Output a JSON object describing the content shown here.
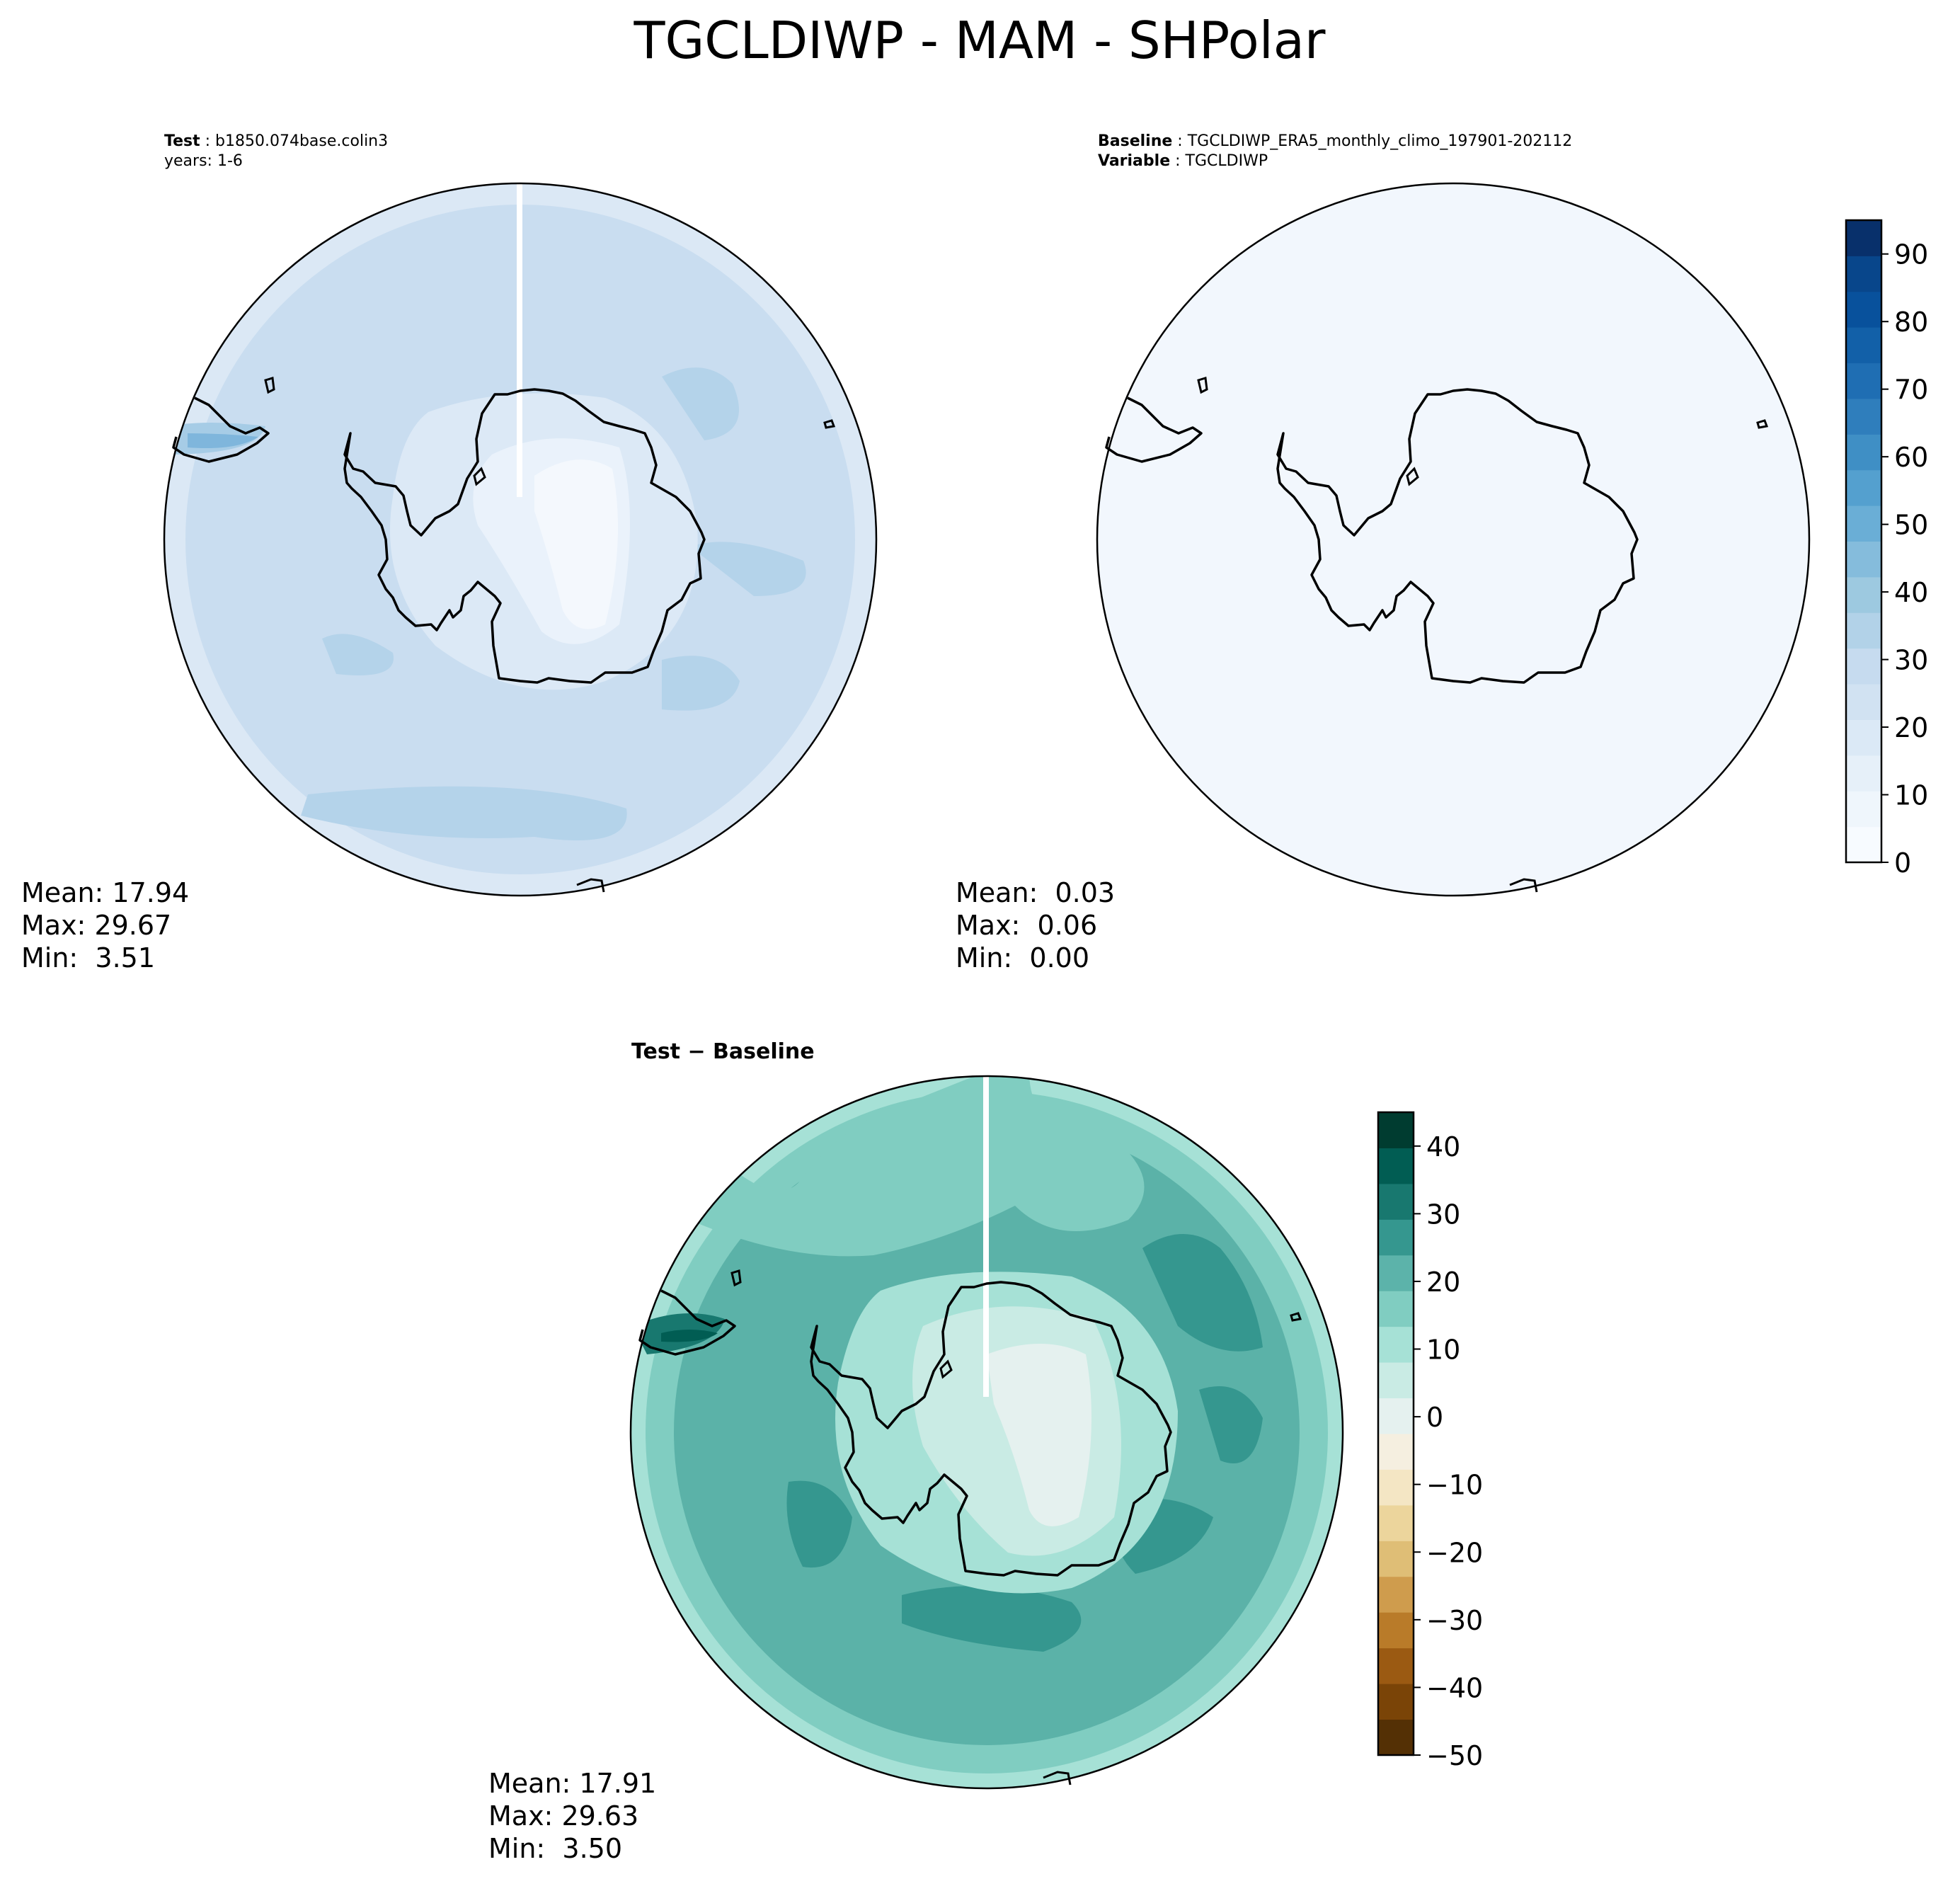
{
  "figure_title": "TGCLDIWP - MAM - SHPolar",
  "colors": {
    "blues": [
      "#f7fbff",
      "#eff6fc",
      "#e6f0f9",
      "#dbe9f6",
      "#d1e2f2",
      "#c6dbef",
      "#b2d2e8",
      "#9dc9e0",
      "#85bcdc",
      "#6aaed6",
      "#54a0cf",
      "#3f8fc5",
      "#2f7ebc",
      "#1f6eb3",
      "#1260a8",
      "#08519c",
      "#08468b",
      "#08306b"
    ],
    "brbg": [
      "#543005",
      "#7a4407",
      "#9b5a12",
      "#b97b29",
      "#cf9c4d",
      "#dfbe76",
      "#ecd59c",
      "#f4e6c4",
      "#f5efe0",
      "#e5f1ef",
      "#c9ebe4",
      "#a6e1d6",
      "#80cdc1",
      "#5cb3aa",
      "#35978f",
      "#18786f",
      "#015d53",
      "#003c30"
    ]
  },
  "chart_data": [
    {
      "type": "heatmap",
      "projection": "south-polar-stereographic",
      "panel": "test",
      "header": {
        "label1": "Test",
        "value1": "b1850.074base.colin3",
        "line2": "years: 1-6"
      },
      "stats": {
        "mean": "Mean: 17.94",
        "max": "Max: 29.67",
        "min": "Min:  3.51"
      },
      "field_summary": {
        "mean": 17.94,
        "max": 29.67,
        "min": 3.51
      }
    },
    {
      "type": "heatmap",
      "projection": "south-polar-stereographic",
      "panel": "baseline",
      "header": {
        "label1": "Baseline",
        "value1": "TGCLDIWP_ERA5_monthly_climo_197901-202112",
        "label2": "Variable",
        "value2": "TGCLDIWP"
      },
      "stats": {
        "mean": "Mean:  0.03",
        "max": "Max:  0.06",
        "min": "Min:  0.00"
      },
      "field_summary": {
        "mean": 0.03,
        "max": 0.06,
        "min": 0.0
      },
      "colorbar": {
        "range": [
          0,
          95
        ],
        "ticks": [
          "0",
          "10",
          "20",
          "30",
          "40",
          "50",
          "60",
          "70",
          "80",
          "90"
        ]
      }
    },
    {
      "type": "heatmap",
      "projection": "south-polar-stereographic",
      "panel": "difference",
      "header": {
        "title": "Test − Baseline"
      },
      "stats": {
        "mean": "Mean: 17.91",
        "max": "Max: 29.63",
        "min": "Min:  3.50"
      },
      "field_summary": {
        "mean": 17.91,
        "max": 29.63,
        "min": 3.5
      },
      "colorbar": {
        "range": [
          -50,
          45
        ],
        "ticks": [
          "40",
          "30",
          "20",
          "10",
          "0",
          "−10",
          "−20",
          "−30",
          "−40",
          "−50"
        ]
      }
    }
  ]
}
